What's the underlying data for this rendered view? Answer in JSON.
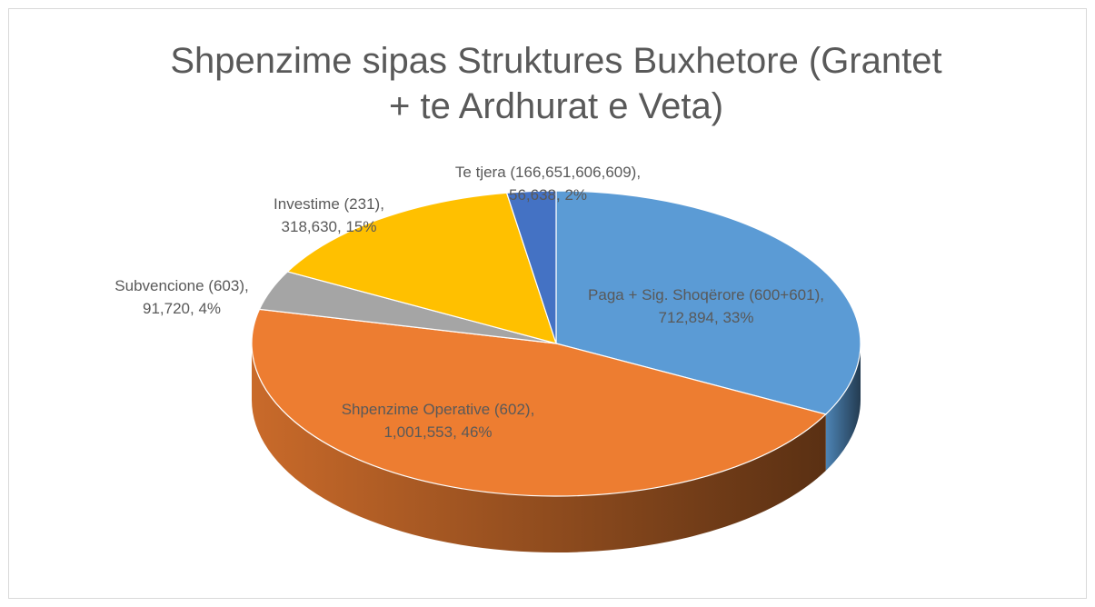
{
  "chart_data": {
    "type": "pie3d",
    "title": "Shpenzime sipas Struktures Buxhetore (Grantet + te Ardhurat e Veta)",
    "categories": [
      "Paga + Sig. Shoqërore (600+601)",
      "Shpenzime Operative (602)",
      "Subvencione (603)",
      "Investime (231)",
      "Te tjera (166,651,606,609)"
    ],
    "values": [
      712894,
      1001553,
      91720,
      318630,
      56638
    ],
    "value_labels": [
      "712,894",
      "1,001,553",
      "91,720",
      "318,630",
      "56,638"
    ],
    "percents": [
      33,
      46,
      4,
      15,
      2
    ],
    "percent_labels": [
      "33%",
      "46%",
      "4%",
      "15%",
      "2%"
    ],
    "colors": [
      "#5b9bd5",
      "#ed7d31",
      "#a5a5a5",
      "#ffc000",
      "#4472c4"
    ]
  }
}
